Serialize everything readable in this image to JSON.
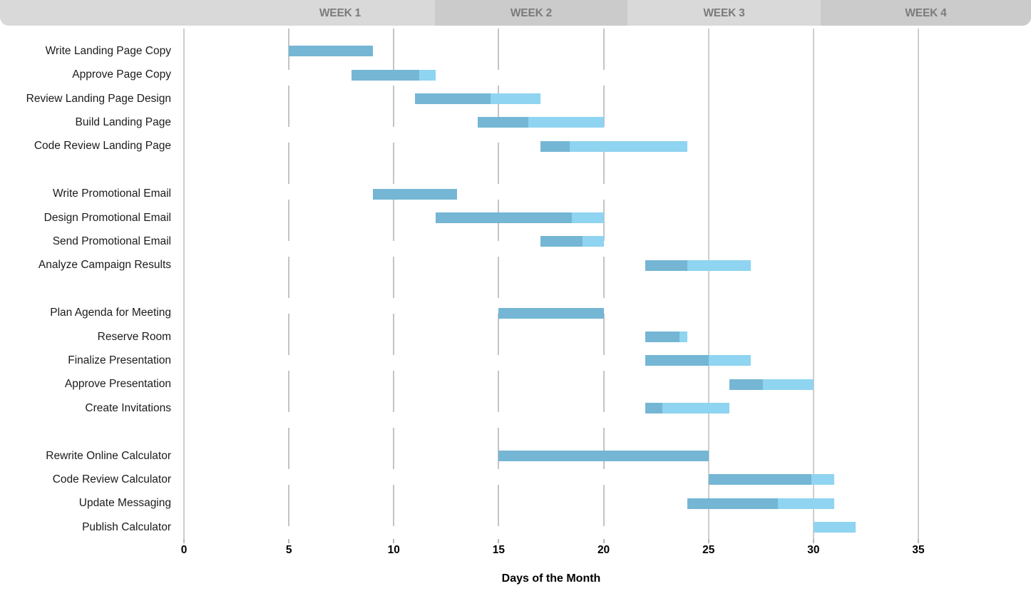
{
  "header": {
    "weeks": [
      {
        "label": "WEEK 1"
      },
      {
        "label": "WEEK 2"
      },
      {
        "label": "WEEK 3"
      },
      {
        "label": "WEEK 4"
      }
    ],
    "band_light_color": "#d9d9d9",
    "band_dark_color": "#cbcbcb",
    "label_color": "#7b7b7b"
  },
  "chart_data": {
    "type": "bar",
    "subtype": "gantt",
    "title": "",
    "xlabel": "Days of the Month",
    "ylabel": "",
    "xlim": [
      0,
      40
    ],
    "x_ticks": [
      0,
      5,
      10,
      15,
      20,
      25,
      30,
      35
    ],
    "grid": {
      "dashed_at": [
        5,
        10,
        15,
        20
      ],
      "solid_at": [
        0,
        25,
        30,
        35
      ],
      "dashed_color": "#c4c4c4",
      "solid_color": "#cdcdcd"
    },
    "legend": null,
    "colors": {
      "completed": "#74b6d4",
      "remaining": "#8fd4f0"
    },
    "tasks": [
      {
        "row": 0,
        "name": "Write Landing Page Copy",
        "start": 5,
        "end": 9,
        "completed_until": 9,
        "percent_complete": 100
      },
      {
        "row": 1,
        "name": "Approve Page Copy",
        "start": 8,
        "end": 12,
        "completed_until": 11.2,
        "percent_complete": 80
      },
      {
        "row": 2,
        "name": "Review Landing Page Design",
        "start": 11,
        "end": 17,
        "completed_until": 14.6,
        "percent_complete": 60
      },
      {
        "row": 3,
        "name": "Build Landing Page",
        "start": 14,
        "end": 20,
        "completed_until": 16.4,
        "percent_complete": 40
      },
      {
        "row": 4,
        "name": "Code Review Landing Page",
        "start": 17,
        "end": 24,
        "completed_until": 18.4,
        "percent_complete": 20
      },
      {
        "row": 6,
        "name": "Write Promotional Email",
        "start": 9,
        "end": 13,
        "completed_until": 13,
        "percent_complete": 100
      },
      {
        "row": 7,
        "name": "Design Promotional Email",
        "start": 12,
        "end": 20,
        "completed_until": 18.5,
        "percent_complete": 81
      },
      {
        "row": 8,
        "name": "Send Promotional Email",
        "start": 17,
        "end": 20,
        "completed_until": 19,
        "percent_complete": 67
      },
      {
        "row": 9,
        "name": "Analyze Campaign Results",
        "start": 22,
        "end": 27,
        "completed_until": 24,
        "percent_complete": 40
      },
      {
        "row": 11,
        "name": "Plan Agenda for Meeting",
        "start": 15,
        "end": 20,
        "completed_until": 20,
        "percent_complete": 100
      },
      {
        "row": 12,
        "name": "Reserve Room",
        "start": 22,
        "end": 24,
        "completed_until": 23.6,
        "percent_complete": 80
      },
      {
        "row": 13,
        "name": "Finalize Presentation",
        "start": 22,
        "end": 27,
        "completed_until": 25,
        "percent_complete": 60
      },
      {
        "row": 14,
        "name": "Approve Presentation",
        "start": 26,
        "end": 30,
        "completed_until": 27.6,
        "percent_complete": 40
      },
      {
        "row": 15,
        "name": "Create Invitations",
        "start": 22,
        "end": 26,
        "completed_until": 22.8,
        "percent_complete": 20
      },
      {
        "row": 17,
        "name": "Rewrite Online Calculator",
        "start": 15,
        "end": 25,
        "completed_until": 25,
        "percent_complete": 100
      },
      {
        "row": 18,
        "name": "Code Review Calculator",
        "start": 25,
        "end": 31,
        "completed_until": 29.9,
        "percent_complete": 82
      },
      {
        "row": 19,
        "name": "Update Messaging",
        "start": 24,
        "end": 31,
        "completed_until": 28.3,
        "percent_complete": 61
      },
      {
        "row": 20,
        "name": "Publish Calculator",
        "start": 30,
        "end": 32,
        "completed_until": 30,
        "percent_complete": 0
      }
    ]
  }
}
